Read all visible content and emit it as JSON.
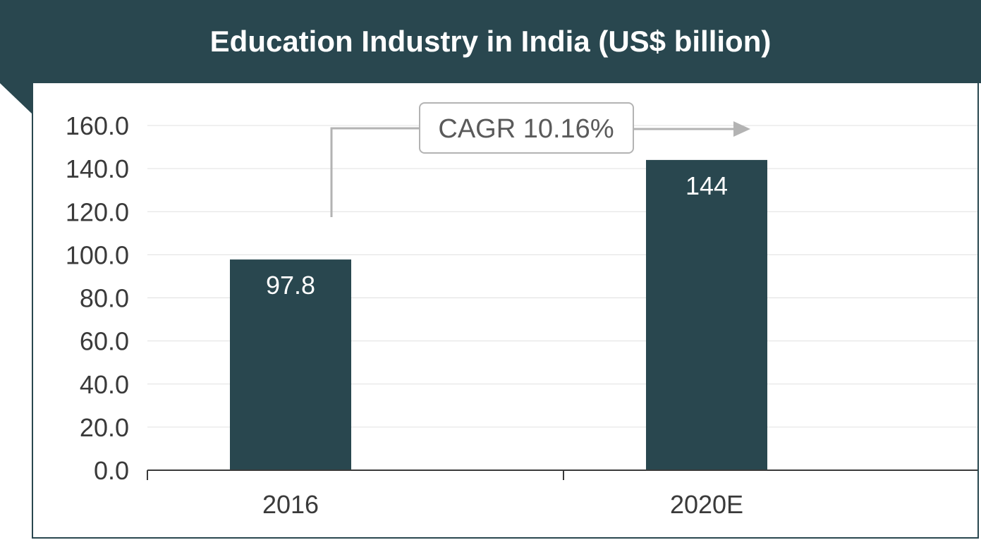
{
  "header": {
    "title": "Education Industry in India (US$ billion)"
  },
  "chart_data": {
    "type": "bar",
    "title": "Education Industry in India (US$ billion)",
    "categories": [
      "2016",
      "2020E"
    ],
    "values": [
      97.8,
      144
    ],
    "value_labels": [
      "97.8",
      "144"
    ],
    "ylim": [
      0,
      160
    ],
    "yticks": [
      0,
      20,
      40,
      60,
      80,
      100,
      120,
      140,
      160
    ],
    "ytick_labels": [
      "0.0",
      "20.0",
      "40.0",
      "60.0",
      "80.0",
      "100.0",
      "120.0",
      "140.0",
      "160.0"
    ],
    "grid": true,
    "xlabel": "",
    "ylabel": "",
    "annotation": {
      "text": "CAGR 10.16%"
    },
    "colors": {
      "bar": "#29474f",
      "header": "#29474f",
      "arrow": "#b3b3b3",
      "grid": "#e0e0e0"
    }
  }
}
